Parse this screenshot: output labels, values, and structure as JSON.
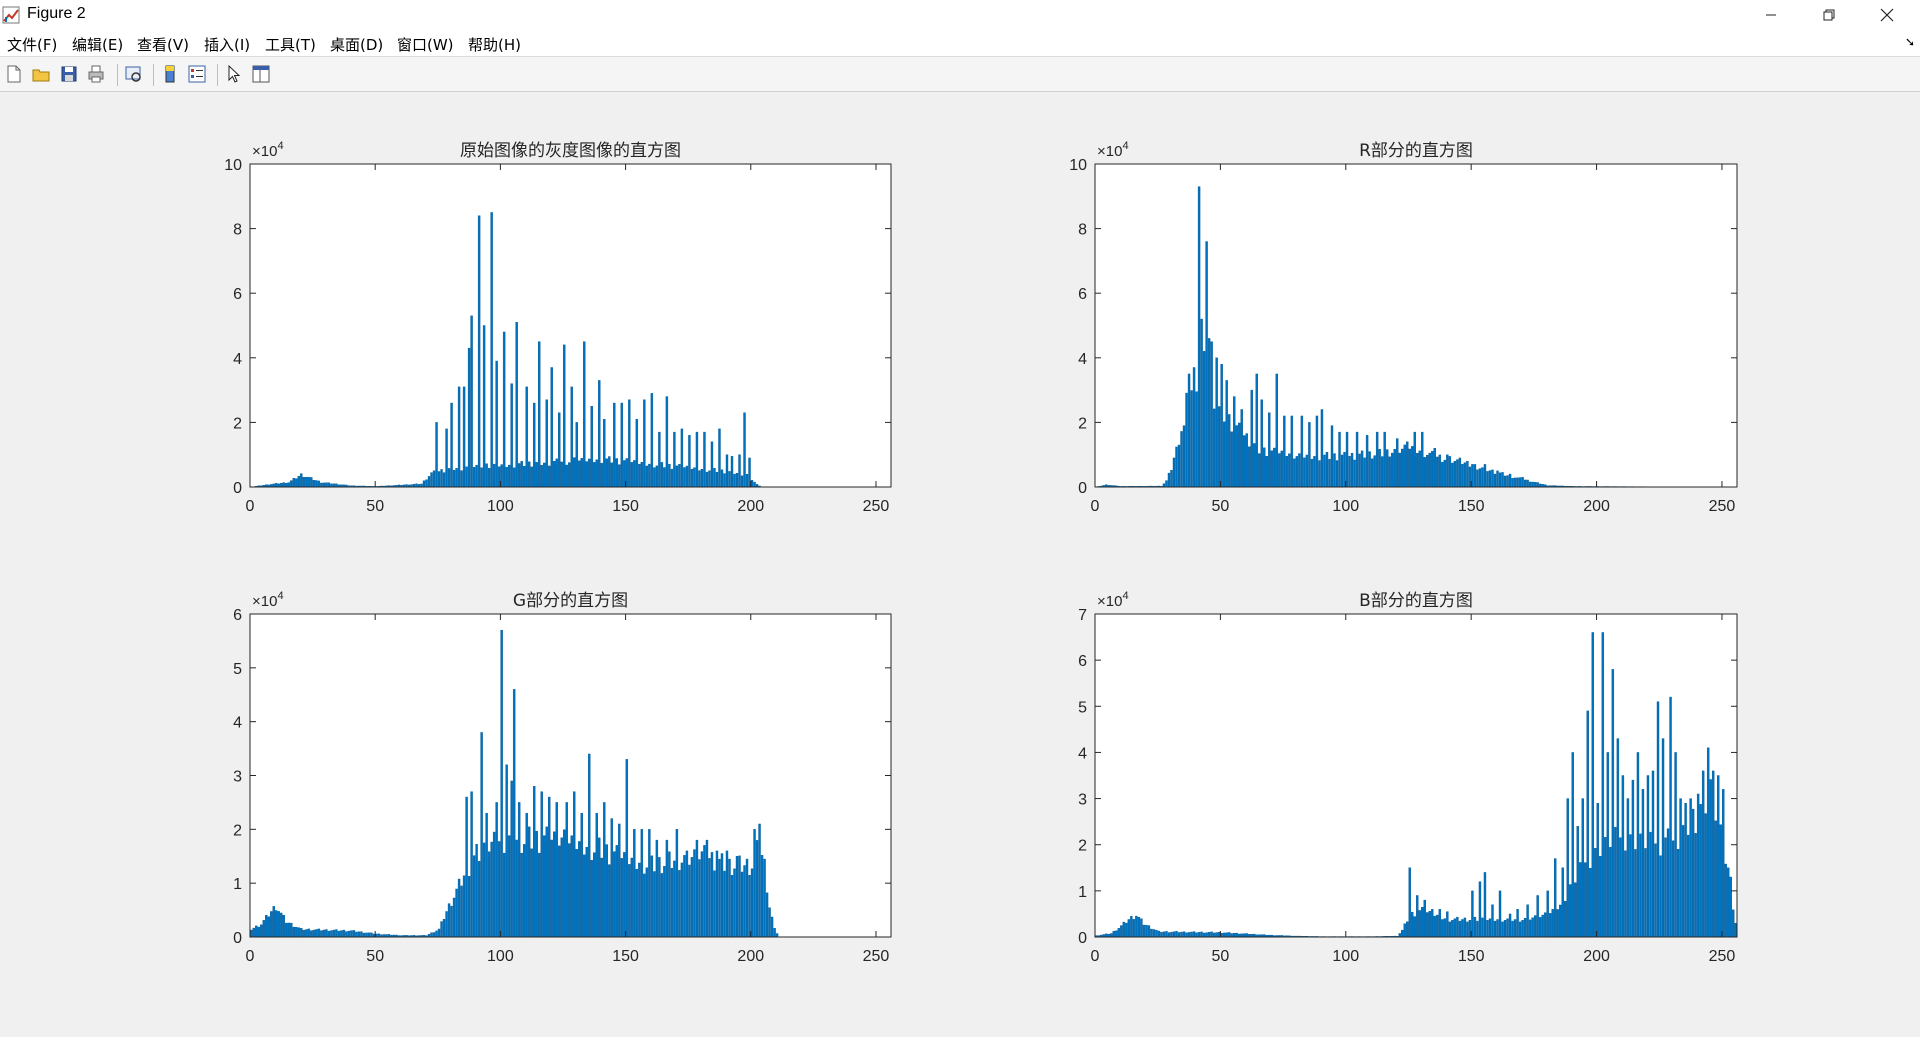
{
  "window": {
    "title": "Figure 2"
  },
  "menu": [
    "文件(F)",
    "编辑(E)",
    "查看(V)",
    "插入(I)",
    "工具(T)",
    "桌面(D)",
    "窗口(W)",
    "帮助(H)"
  ],
  "toolbar": [
    "new-figure-icon",
    "open-icon",
    "save-icon",
    "print-icon",
    "print-preview-icon",
    "colorbar-icon",
    "legend-icon",
    "pointer-icon",
    "property-editor-icon"
  ],
  "colors": {
    "bar": "#0072bd",
    "axes": "#262626",
    "background": "#f0f0f0"
  },
  "chart_data": [
    {
      "type": "bar",
      "title": "原始图像的灰度图像的直方图",
      "xlim": [
        0,
        256
      ],
      "ylim": [
        0,
        100000
      ],
      "xticks": [
        "0",
        "50",
        "100",
        "150",
        "200",
        "250"
      ],
      "yticks": [
        "0",
        "2",
        "4",
        "6",
        "8",
        "10"
      ],
      "exponent": "×10",
      "exponent_power": "4",
      "xlabel": "",
      "ylabel": "",
      "grid": false,
      "baseline": [
        [
          0,
          0
        ],
        [
          6,
          700
        ],
        [
          15,
          1500
        ],
        [
          20,
          4000
        ],
        [
          28,
          1500
        ],
        [
          40,
          400
        ],
        [
          50,
          200
        ],
        [
          68,
          1000
        ],
        [
          72,
          4500
        ],
        [
          80,
          6000
        ],
        [
          100,
          7000
        ],
        [
          120,
          8000
        ],
        [
          140,
          9000
        ],
        [
          165,
          7000
        ],
        [
          190,
          5000
        ],
        [
          198,
          4000
        ],
        [
          202,
          800
        ],
        [
          204,
          0
        ],
        [
          256,
          0
        ]
      ],
      "spikes": [
        [
          74,
          20000
        ],
        [
          78,
          18000
        ],
        [
          80,
          26000
        ],
        [
          83,
          31000
        ],
        [
          85,
          31000
        ],
        [
          87,
          43000
        ],
        [
          88,
          53000
        ],
        [
          91,
          84000
        ],
        [
          93,
          50000
        ],
        [
          96,
          85000
        ],
        [
          98,
          39000
        ],
        [
          101,
          48000
        ],
        [
          104,
          32000
        ],
        [
          106,
          51000
        ],
        [
          110,
          31000
        ],
        [
          113,
          26000
        ],
        [
          115,
          45000
        ],
        [
          118,
          27000
        ],
        [
          120,
          37000
        ],
        [
          123,
          23000
        ],
        [
          125,
          44000
        ],
        [
          128,
          31000
        ],
        [
          130,
          20000
        ],
        [
          133,
          45000
        ],
        [
          136,
          25000
        ],
        [
          139,
          33000
        ],
        [
          141,
          21000
        ],
        [
          145,
          26000
        ],
        [
          148,
          26000
        ],
        [
          151,
          27000
        ],
        [
          154,
          21000
        ],
        [
          157,
          27000
        ],
        [
          160,
          29000
        ],
        [
          163,
          17000
        ],
        [
          166,
          28000
        ],
        [
          169,
          17000
        ],
        [
          172,
          18000
        ],
        [
          175,
          16000
        ],
        [
          178,
          17000
        ],
        [
          181,
          17000
        ],
        [
          184,
          14000
        ],
        [
          187,
          18000
        ],
        [
          190,
          10000
        ],
        [
          192,
          9500
        ],
        [
          195,
          10000
        ],
        [
          197,
          23000
        ],
        [
          199,
          9000
        ]
      ]
    },
    {
      "type": "bar",
      "title": "R部分的直方图",
      "xlim": [
        0,
        256
      ],
      "ylim": [
        0,
        100000
      ],
      "xticks": [
        "0",
        "50",
        "100",
        "150",
        "200",
        "250"
      ],
      "yticks": [
        "0",
        "2",
        "4",
        "6",
        "8",
        "10"
      ],
      "exponent": "×10",
      "exponent_power": "4",
      "xlabel": "",
      "ylabel": "",
      "grid": false,
      "baseline": [
        [
          0,
          0
        ],
        [
          4,
          700
        ],
        [
          10,
          200
        ],
        [
          26,
          300
        ],
        [
          28,
          2000
        ],
        [
          30,
          6000
        ],
        [
          33,
          15000
        ],
        [
          36,
          27000
        ],
        [
          40,
          36000
        ],
        [
          44,
          40000
        ],
        [
          48,
          26000
        ],
        [
          55,
          20000
        ],
        [
          65,
          12000
        ],
        [
          80,
          10000
        ],
        [
          100,
          10000
        ],
        [
          115,
          11000
        ],
        [
          125,
          13000
        ],
        [
          135,
          10000
        ],
        [
          150,
          7000
        ],
        [
          165,
          3500
        ],
        [
          175,
          1500
        ],
        [
          180,
          500
        ],
        [
          190,
          200
        ],
        [
          220,
          100
        ],
        [
          230,
          0
        ],
        [
          256,
          0
        ]
      ],
      "spikes": [
        [
          31,
          9000
        ],
        [
          33,
          13000
        ],
        [
          35,
          19000
        ],
        [
          37,
          35000
        ],
        [
          39,
          37000
        ],
        [
          41,
          93000
        ],
        [
          42,
          52000
        ],
        [
          44,
          76000
        ],
        [
          45,
          46000
        ],
        [
          46,
          45000
        ],
        [
          48,
          40000
        ],
        [
          50,
          38000
        ],
        [
          52,
          33000
        ],
        [
          55,
          28000
        ],
        [
          58,
          24000
        ],
        [
          62,
          30000
        ],
        [
          64,
          35000
        ],
        [
          66,
          27000
        ],
        [
          69,
          23000
        ],
        [
          72,
          35000
        ],
        [
          75,
          22000
        ],
        [
          78,
          22000
        ],
        [
          82,
          22000
        ],
        [
          85,
          20000
        ],
        [
          88,
          22000
        ],
        [
          90,
          24000
        ],
        [
          94,
          19000
        ],
        [
          97,
          17000
        ],
        [
          100,
          17000
        ],
        [
          104,
          17000
        ],
        [
          108,
          16000
        ],
        [
          112,
          17000
        ],
        [
          115,
          17000
        ],
        [
          120,
          15000
        ],
        [
          124,
          14000
        ],
        [
          127,
          17000
        ],
        [
          130,
          17000
        ],
        [
          135,
          12000
        ],
        [
          140,
          10000
        ],
        [
          145,
          9000
        ],
        [
          150,
          7000
        ],
        [
          155,
          7000
        ],
        [
          160,
          5000
        ],
        [
          165,
          4000
        ],
        [
          170,
          3000
        ]
      ]
    },
    {
      "type": "bar",
      "title": "G部分的直方图",
      "xlim": [
        0,
        256
      ],
      "ylim": [
        0,
        60000
      ],
      "xticks": [
        "0",
        "50",
        "100",
        "150",
        "200",
        "250"
      ],
      "yticks": [
        "0",
        "1",
        "2",
        "3",
        "4",
        "5",
        "6"
      ],
      "exponent": "×10",
      "exponent_power": "4",
      "xlabel": "",
      "ylabel": "",
      "grid": false,
      "baseline": [
        [
          0,
          1500
        ],
        [
          4,
          2500
        ],
        [
          8,
          5000
        ],
        [
          10,
          6000
        ],
        [
          14,
          3000
        ],
        [
          20,
          1500
        ],
        [
          40,
          1200
        ],
        [
          50,
          600
        ],
        [
          60,
          300
        ],
        [
          70,
          300
        ],
        [
          75,
          1500
        ],
        [
          78,
          5000
        ],
        [
          82,
          9000
        ],
        [
          86,
          13000
        ],
        [
          90,
          16000
        ],
        [
          100,
          19000
        ],
        [
          110,
          19000
        ],
        [
          120,
          19000
        ],
        [
          130,
          18000
        ],
        [
          140,
          17000
        ],
        [
          150,
          15000
        ],
        [
          160,
          14000
        ],
        [
          170,
          15000
        ],
        [
          180,
          16000
        ],
        [
          190,
          14000
        ],
        [
          200,
          14000
        ],
        [
          203,
          18000
        ],
        [
          205,
          14000
        ],
        [
          207,
          6000
        ],
        [
          209,
          1500
        ],
        [
          211,
          0
        ],
        [
          256,
          0
        ]
      ],
      "spikes": [
        [
          86,
          26000
        ],
        [
          88,
          27000
        ],
        [
          92,
          38000
        ],
        [
          94,
          23000
        ],
        [
          98,
          25000
        ],
        [
          100,
          57000
        ],
        [
          102,
          32000
        ],
        [
          104,
          29000
        ],
        [
          105,
          46000
        ],
        [
          107,
          25000
        ],
        [
          110,
          23000
        ],
        [
          113,
          28000
        ],
        [
          116,
          27000
        ],
        [
          119,
          26000
        ],
        [
          122,
          25000
        ],
        [
          126,
          25000
        ],
        [
          129,
          27000
        ],
        [
          132,
          23000
        ],
        [
          135,
          34000
        ],
        [
          138,
          23000
        ],
        [
          141,
          25000
        ],
        [
          144,
          22000
        ],
        [
          147,
          21000
        ],
        [
          150,
          33000
        ],
        [
          153,
          20000
        ],
        [
          156,
          20000
        ],
        [
          159,
          20000
        ],
        [
          162,
          18000
        ],
        [
          166,
          18000
        ],
        [
          170,
          20000
        ],
        [
          174,
          16000
        ],
        [
          178,
          18000
        ],
        [
          182,
          18000
        ],
        [
          186,
          16000
        ],
        [
          190,
          16000
        ],
        [
          194,
          15000
        ],
        [
          201,
          20000
        ],
        [
          203,
          21000
        ]
      ]
    },
    {
      "type": "bar",
      "title": "B部分的直方图",
      "xlim": [
        0,
        256
      ],
      "ylim": [
        0,
        70000
      ],
      "xticks": [
        "0",
        "50",
        "100",
        "150",
        "200",
        "250"
      ],
      "yticks": [
        "0",
        "1",
        "2",
        "3",
        "4",
        "5",
        "6",
        "7"
      ],
      "exponent": "×10",
      "exponent_power": "4",
      "xlabel": "",
      "ylabel": "",
      "grid": false,
      "baseline": [
        [
          0,
          300
        ],
        [
          6,
          800
        ],
        [
          10,
          2500
        ],
        [
          13,
          4000
        ],
        [
          16,
          5000
        ],
        [
          19,
          3000
        ],
        [
          25,
          1200
        ],
        [
          50,
          1000
        ],
        [
          60,
          700
        ],
        [
          70,
          400
        ],
        [
          80,
          200
        ],
        [
          90,
          100
        ],
        [
          110,
          100
        ],
        [
          120,
          200
        ],
        [
          122,
          1500
        ],
        [
          125,
          5000
        ],
        [
          130,
          6000
        ],
        [
          140,
          4000
        ],
        [
          150,
          4000
        ],
        [
          160,
          4000
        ],
        [
          170,
          4000
        ],
        [
          180,
          5000
        ],
        [
          185,
          7000
        ],
        [
          190,
          12000
        ],
        [
          195,
          17000
        ],
        [
          200,
          20000
        ],
        [
          210,
          23000
        ],
        [
          220,
          21000
        ],
        [
          230,
          22000
        ],
        [
          240,
          28000
        ],
        [
          245,
          33000
        ],
        [
          250,
          20000
        ],
        [
          253,
          10000
        ],
        [
          255,
          3000
        ],
        [
          256,
          0
        ]
      ],
      "spikes": [
        [
          125,
          15000
        ],
        [
          128,
          9000
        ],
        [
          131,
          8000
        ],
        [
          134,
          6000
        ],
        [
          137,
          6000
        ],
        [
          140,
          5500
        ],
        [
          150,
          10000
        ],
        [
          153,
          12000
        ],
        [
          155,
          14000
        ],
        [
          158,
          7000
        ],
        [
          161,
          10000
        ],
        [
          165,
          5000
        ],
        [
          168,
          6000
        ],
        [
          172,
          7000
        ],
        [
          176,
          9000
        ],
        [
          180,
          10000
        ],
        [
          183,
          17000
        ],
        [
          186,
          15000
        ],
        [
          188,
          30000
        ],
        [
          190,
          40000
        ],
        [
          192,
          24000
        ],
        [
          194,
          30000
        ],
        [
          196,
          49000
        ],
        [
          198,
          66000
        ],
        [
          200,
          29000
        ],
        [
          202,
          66000
        ],
        [
          204,
          40000
        ],
        [
          206,
          58000
        ],
        [
          208,
          43000
        ],
        [
          210,
          35000
        ],
        [
          212,
          30000
        ],
        [
          214,
          34000
        ],
        [
          216,
          40000
        ],
        [
          218,
          32000
        ],
        [
          220,
          35000
        ],
        [
          222,
          36000
        ],
        [
          224,
          51000
        ],
        [
          226,
          43000
        ],
        [
          229,
          52000
        ],
        [
          231,
          40000
        ],
        [
          233,
          30000
        ],
        [
          235,
          29000
        ],
        [
          237,
          30000
        ],
        [
          240,
          31000
        ],
        [
          242,
          36000
        ],
        [
          244,
          41000
        ],
        [
          246,
          36000
        ],
        [
          248,
          35000
        ],
        [
          250,
          32000
        ],
        [
          252,
          15000
        ],
        [
          253,
          13000
        ],
        [
          255,
          3000
        ]
      ]
    }
  ]
}
